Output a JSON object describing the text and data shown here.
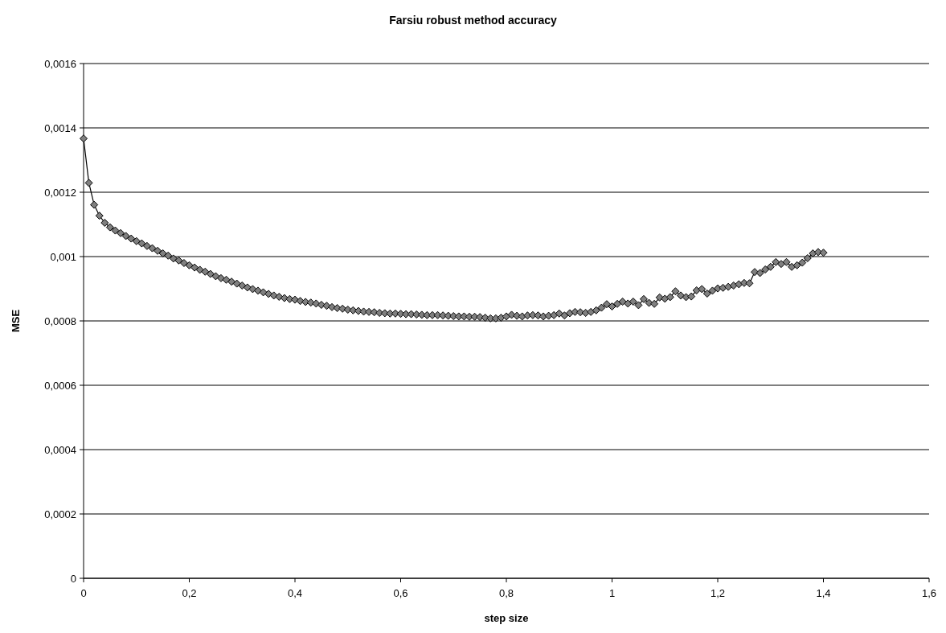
{
  "chart_data": {
    "type": "line",
    "title": "Farsiu robust method accuracy",
    "xlabel": "step size",
    "ylabel": "MSE",
    "x": [
      0,
      0.01,
      0.02,
      0.03,
      0.04,
      0.05,
      0.06,
      0.07,
      0.08,
      0.09,
      0.1,
      0.11,
      0.12,
      0.13,
      0.14,
      0.15,
      0.16,
      0.17,
      0.18,
      0.19,
      0.2,
      0.21,
      0.22,
      0.23,
      0.24,
      0.25,
      0.26,
      0.27,
      0.28,
      0.29,
      0.3,
      0.31,
      0.32,
      0.33,
      0.34,
      0.35,
      0.36,
      0.37,
      0.38,
      0.39,
      0.4,
      0.41,
      0.42,
      0.43,
      0.44,
      0.45,
      0.46,
      0.47,
      0.48,
      0.49,
      0.5,
      0.51,
      0.52,
      0.53,
      0.54,
      0.55,
      0.56,
      0.57,
      0.58,
      0.59,
      0.6,
      0.61,
      0.62,
      0.63,
      0.64,
      0.65,
      0.66,
      0.67,
      0.68,
      0.69,
      0.7,
      0.71,
      0.72,
      0.73,
      0.74,
      0.75,
      0.76,
      0.77,
      0.78,
      0.79,
      0.8,
      0.81,
      0.82,
      0.83,
      0.84,
      0.85,
      0.86,
      0.87,
      0.88,
      0.89,
      0.9,
      0.91,
      0.92,
      0.93,
      0.94,
      0.95,
      0.96,
      0.97,
      0.98,
      0.99,
      1,
      1.01,
      1.02,
      1.03,
      1.04,
      1.05,
      1.06,
      1.07,
      1.08,
      1.09,
      1.1,
      1.11,
      1.12,
      1.13,
      1.14,
      1.15,
      1.16,
      1.17,
      1.18,
      1.19,
      1.2,
      1.21,
      1.22,
      1.23,
      1.24,
      1.25,
      1.26,
      1.27,
      1.28,
      1.29,
      1.3,
      1.31,
      1.32,
      1.33,
      1.34,
      1.35,
      1.36,
      1.37,
      1.38,
      1.39,
      1.4
    ],
    "series": [
      {
        "color": "#808080",
        "values": [
          0.001367,
          0.001229,
          0.001161,
          0.001127,
          0.001105,
          0.001091,
          0.001081,
          0.001073,
          0.001064,
          0.001056,
          0.001048,
          0.001041,
          0.001033,
          0.001026,
          0.001018,
          0.00101,
          0.001003,
          0.000994,
          0.000988,
          0.00098,
          0.000973,
          0.000966,
          0.000959,
          0.000953,
          0.000946,
          0.000939,
          0.000933,
          0.000928,
          0.000922,
          0.000916,
          0.00091,
          0.000904,
          0.000899,
          0.000894,
          0.000889,
          0.000884,
          0.000879,
          0.000875,
          0.000871,
          0.000868,
          0.000866,
          0.000862,
          0.000859,
          0.000857,
          0.000854,
          0.00085,
          0.000847,
          0.000843,
          0.00084,
          0.000838,
          0.000835,
          0.000833,
          0.000831,
          0.000829,
          0.000828,
          0.000827,
          0.000825,
          0.000824,
          0.000823,
          0.000823,
          0.000822,
          0.000821,
          0.000821,
          0.00082,
          0.000819,
          0.000818,
          0.000818,
          0.000818,
          0.000817,
          0.000816,
          0.000815,
          0.000814,
          0.000814,
          0.000813,
          0.000813,
          0.000812,
          0.00081,
          0.000808,
          0.000808,
          0.00081,
          0.000814,
          0.000819,
          0.000816,
          0.000814,
          0.000817,
          0.000818,
          0.000817,
          0.000814,
          0.000816,
          0.000818,
          0.000823,
          0.000817,
          0.000824,
          0.000828,
          0.000827,
          0.000825,
          0.000828,
          0.000833,
          0.000841,
          0.000852,
          0.000845,
          0.000853,
          0.00086,
          0.000854,
          0.00086,
          0.000849,
          0.000868,
          0.000856,
          0.000853,
          0.000873,
          0.000869,
          0.000874,
          0.000892,
          0.000879,
          0.000874,
          0.000876,
          0.000895,
          0.000899,
          0.000885,
          0.000894,
          0.000901,
          0.000903,
          0.000906,
          0.00091,
          0.000914,
          0.000918,
          0.000917,
          0.000952,
          0.000949,
          0.00096,
          0.000968,
          0.000983,
          0.000977,
          0.000983,
          0.000968,
          0.000973,
          0.000981,
          0.000995,
          0.00101,
          0.001014,
          0.001012
        ]
      }
    ],
    "xlim": [
      0,
      1.6
    ],
    "xticks": [
      0,
      {
        "value": 0.2,
        "label": "0,2"
      },
      {
        "value": 0.4,
        "label": "0,4"
      },
      {
        "value": 0.6,
        "label": "0,6"
      },
      {
        "value": 0.8,
        "label": "0,8"
      },
      1,
      {
        "value": 1.2,
        "label": "1,2"
      },
      {
        "value": 1.4,
        "label": "1,4"
      },
      {
        "value": 1.6,
        "label": "1,6"
      }
    ],
    "ylim": [
      0,
      0.0016
    ],
    "yticks": [
      0,
      {
        "value": 0.0002,
        "label": "0,0002"
      },
      {
        "value": 0.0004,
        "label": "0,0004"
      },
      {
        "value": 0.0006,
        "label": "0,0006"
      },
      {
        "value": 0.0008,
        "label": "0,0008"
      },
      {
        "value": 0.001,
        "label": "0,001"
      },
      {
        "value": 0.0012,
        "label": "0,0012"
      },
      {
        "value": 0.0014,
        "label": "0,0014"
      },
      {
        "value": 0.0016,
        "label": "0,0016"
      }
    ],
    "grid": "y",
    "marker": "diamond",
    "line_style": "solid"
  }
}
